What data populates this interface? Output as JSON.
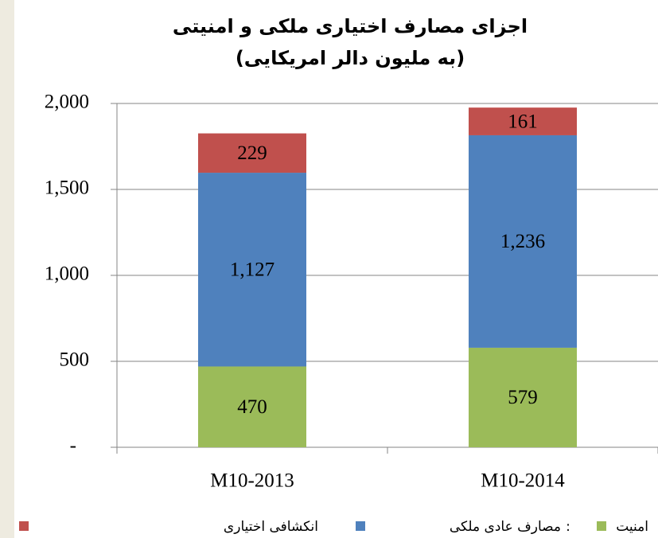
{
  "chart_data": {
    "type": "bar",
    "stacked": true,
    "title": [
      "اجزای مصارف اختیاری ملکی و امنیتی",
      "(به ملیون دالر امریکایی)"
    ],
    "categories": [
      "M10-2013",
      "M10-2014"
    ],
    "series": [
      {
        "name": "امنیت",
        "color": "#9bbb59",
        "values": [
          470,
          579
        ]
      },
      {
        "name": "مصارف عادی ملکی",
        "color": "#4f81bd",
        "values": [
          1127,
          1236
        ],
        "value_labels": [
          "1,127",
          "1,236"
        ]
      },
      {
        "name": "انکشافی اختیاری",
        "color": "#c0504d",
        "values": [
          229,
          161
        ]
      }
    ],
    "legend_separator": ":",
    "ylim": [
      0,
      2000
    ],
    "yticks": [
      {
        "value": 0,
        "label": "-"
      },
      500,
      {
        "value": 1000,
        "label": "1,000"
      },
      {
        "value": 1500,
        "label": "1,500"
      },
      {
        "value": 2000,
        "label": "2,000"
      }
    ],
    "grid": true,
    "legend": "bottom"
  }
}
